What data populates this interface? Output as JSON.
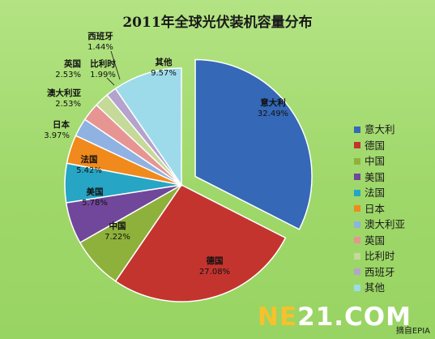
{
  "chart_data": {
    "type": "pie",
    "title": "2011年全球光伏装机容量分布",
    "legend_position": "right",
    "slices": [
      {
        "name": "意大利",
        "value": 32.49,
        "label": "32.49%",
        "color": "#3568b6"
      },
      {
        "name": "德国",
        "value": 27.08,
        "label": "27.08%",
        "color": "#c4342f"
      },
      {
        "name": "中国",
        "value": 7.22,
        "label": "7.22%",
        "color": "#8eb13b"
      },
      {
        "name": "美国",
        "value": 5.78,
        "label": "5.78%",
        "color": "#70479a"
      },
      {
        "name": "法国",
        "value": 5.42,
        "label": "5.42%",
        "color": "#27a5c4"
      },
      {
        "name": "日本",
        "value": 3.97,
        "label": "3.97%",
        "color": "#f08a1d"
      },
      {
        "name": "澳大利亚",
        "value": 2.53,
        "label": "2.53%",
        "color": "#8fb2e2"
      },
      {
        "name": "英国",
        "value": 2.53,
        "label": "2.53%",
        "color": "#e69593"
      },
      {
        "name": "比利时",
        "value": 1.99,
        "label": "1.99%",
        "color": "#c5d999"
      },
      {
        "name": "西班牙",
        "value": 1.44,
        "label": "1.44%",
        "color": "#b4a3cc"
      },
      {
        "name": "其他",
        "value": 9.57,
        "label": "9.57%",
        "color": "#9ddbeb"
      }
    ]
  },
  "watermark": {
    "ne": "NE",
    "rest": "21.COM"
  },
  "source": "摘自EPIA"
}
